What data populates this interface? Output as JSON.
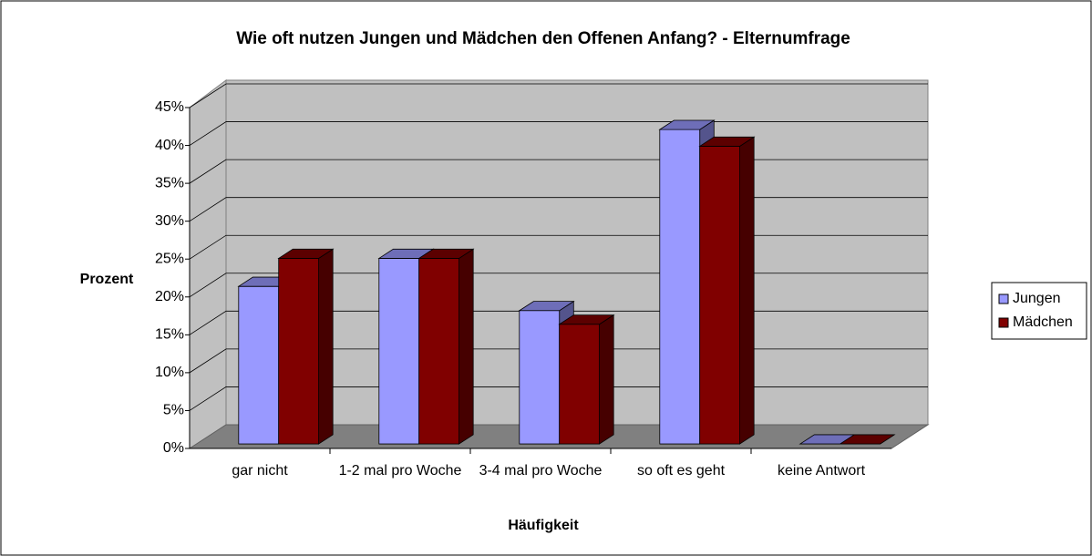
{
  "chart_data": {
    "type": "bar3d",
    "title": "Wie oft nutzen Jungen und Mädchen den Offenen Anfang? - Elternumfrage",
    "xlabel": "Häufigkeit",
    "ylabel": "Prozent",
    "categories": [
      "gar nicht",
      "1-2 mal pro Woche",
      "3-4 mal pro Woche",
      "so oft es geht",
      "keine Antwort"
    ],
    "series": [
      {
        "name": "Jungen",
        "color": "#9999ff",
        "values": [
          20.8,
          24.5,
          17.6,
          41.5,
          0
        ]
      },
      {
        "name": "Mädchen",
        "color": "#800000",
        "values": [
          24.5,
          24.5,
          15.8,
          39.3,
          0
        ]
      }
    ],
    "ylim": [
      0,
      45
    ],
    "yticks": [
      {
        "value": 0,
        "label": "0%"
      },
      {
        "value": 5,
        "label": "5%"
      },
      {
        "value": 10,
        "label": "10%"
      },
      {
        "value": 15,
        "label": "15%"
      },
      {
        "value": 20,
        "label": "20%"
      },
      {
        "value": 25,
        "label": "25%"
      },
      {
        "value": 30,
        "label": "30%"
      },
      {
        "value": 35,
        "label": "35%"
      },
      {
        "value": 40,
        "label": "40%"
      },
      {
        "value": 45,
        "label": "45%"
      }
    ],
    "grid": true,
    "legend": "right"
  }
}
